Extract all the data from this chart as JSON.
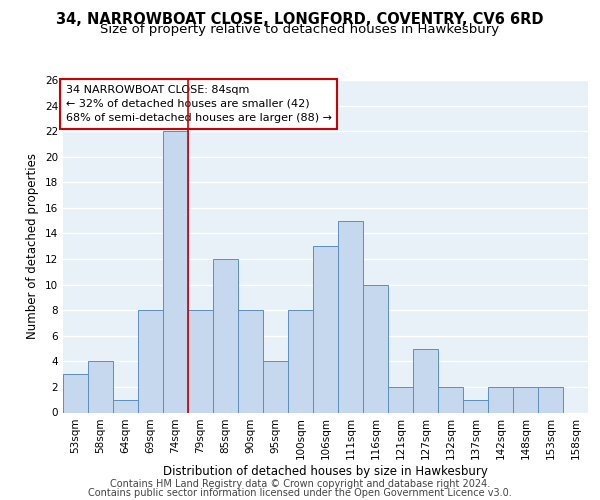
{
  "title1": "34, NARROWBOAT CLOSE, LONGFORD, COVENTRY, CV6 6RD",
  "title2": "Size of property relative to detached houses in Hawkesbury",
  "xlabel": "Distribution of detached houses by size in Hawkesbury",
  "ylabel": "Number of detached properties",
  "categories": [
    "53sqm",
    "58sqm",
    "64sqm",
    "69sqm",
    "74sqm",
    "79sqm",
    "85sqm",
    "90sqm",
    "95sqm",
    "100sqm",
    "106sqm",
    "111sqm",
    "116sqm",
    "121sqm",
    "127sqm",
    "132sqm",
    "137sqm",
    "142sqm",
    "148sqm",
    "153sqm",
    "158sqm"
  ],
  "values": [
    3,
    4,
    1,
    8,
    22,
    8,
    12,
    8,
    4,
    8,
    13,
    15,
    10,
    2,
    5,
    2,
    1,
    2,
    2,
    2,
    0
  ],
  "bar_color": "#c5d8ed",
  "bar_edge_color": "#5b8ec4",
  "background_color": "#e8f0f8",
  "grid_color": "#ffffff",
  "vline_x": 4.5,
  "vline_color": "#cc0000",
  "ylim": [
    0,
    26
  ],
  "yticks": [
    0,
    2,
    4,
    6,
    8,
    10,
    12,
    14,
    16,
    18,
    20,
    22,
    24,
    26
  ],
  "annotation_text": "34 NARROWBOAT CLOSE: 84sqm\n← 32% of detached houses are smaller (42)\n68% of semi-detached houses are larger (88) →",
  "footer1": "Contains HM Land Registry data © Crown copyright and database right 2024.",
  "footer2": "Contains public sector information licensed under the Open Government Licence v3.0.",
  "title1_fontsize": 10.5,
  "title2_fontsize": 9.5,
  "xlabel_fontsize": 8.5,
  "ylabel_fontsize": 8.5,
  "tick_fontsize": 7.5,
  "annotation_fontsize": 8,
  "footer_fontsize": 7
}
